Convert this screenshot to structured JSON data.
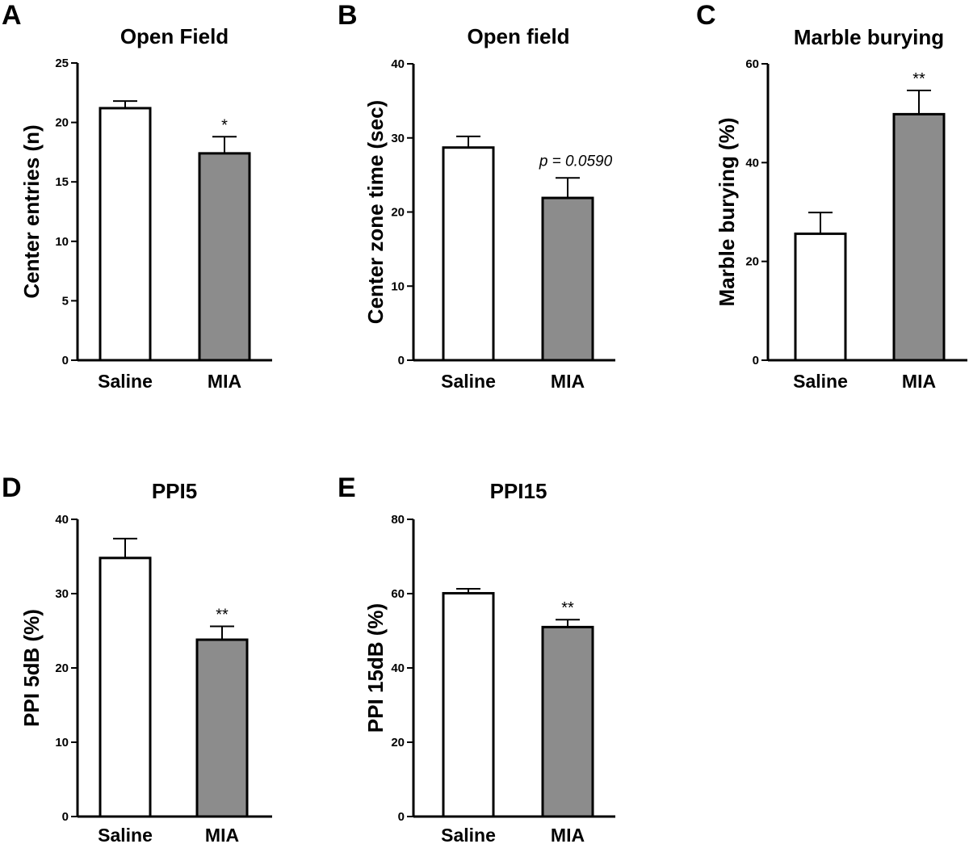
{
  "chart_data": [
    {
      "id": "A",
      "panel_letter": "A",
      "type": "bar",
      "title": "Open Field",
      "xlabel": "",
      "ylabel": "Center entries (n)",
      "ylim": [
        0,
        25
      ],
      "yticks": [
        0,
        5,
        10,
        15,
        20,
        25
      ],
      "ytick_labels": [
        "0",
        "5",
        "10",
        "15",
        "20",
        "25"
      ],
      "categories": [
        "Saline",
        "MIA"
      ],
      "values": [
        21.2,
        17.4
      ],
      "errors": [
        0.6,
        1.4
      ],
      "colors": [
        "#ffffff",
        "#8c8c8c"
      ],
      "annotations": [
        {
          "category": "MIA",
          "text": "*",
          "style": "normal"
        }
      ]
    },
    {
      "id": "B",
      "panel_letter": "B",
      "type": "bar",
      "title": "Open field",
      "xlabel": "",
      "ylabel": "Center zone time (sec)",
      "ylim": [
        0,
        40
      ],
      "yticks": [
        0,
        10,
        20,
        30,
        40
      ],
      "ytick_labels": [
        "0",
        "10",
        "20",
        "30",
        "40"
      ],
      "categories": [
        "Saline",
        "MIA"
      ],
      "values": [
        28.7,
        21.9
      ],
      "errors": [
        1.5,
        2.7
      ],
      "colors": [
        "#ffffff",
        "#8c8c8c"
      ],
      "annotations": [
        {
          "category": "MIA",
          "text": "p = 0.0590",
          "style": "italic"
        }
      ]
    },
    {
      "id": "C",
      "panel_letter": "C",
      "type": "bar",
      "title": "Marble burying",
      "xlabel": "",
      "ylabel": "Marble burying (%)",
      "ylim": [
        0,
        60
      ],
      "yticks": [
        0,
        20,
        40,
        60
      ],
      "ytick_labels": [
        "0",
        "20",
        "40",
        "60"
      ],
      "categories": [
        "Saline",
        "MIA"
      ],
      "values": [
        25.6,
        49.8
      ],
      "errors": [
        4.3,
        4.8
      ],
      "colors": [
        "#ffffff",
        "#8c8c8c"
      ],
      "annotations": [
        {
          "category": "MIA",
          "text": "**",
          "style": "normal"
        }
      ]
    },
    {
      "id": "D",
      "panel_letter": "D",
      "type": "bar",
      "title": "PPI5",
      "xlabel": "",
      "ylabel": "PPI  5dB (%)",
      "ylim": [
        0,
        40
      ],
      "yticks": [
        0,
        10,
        20,
        30,
        40
      ],
      "ytick_labels": [
        "0",
        "10",
        "20",
        "30",
        "40"
      ],
      "categories": [
        "Saline",
        "MIA"
      ],
      "values": [
        34.8,
        23.8
      ],
      "errors": [
        2.6,
        1.8
      ],
      "colors": [
        "#ffffff",
        "#8c8c8c"
      ],
      "annotations": [
        {
          "category": "MIA",
          "text": "**",
          "style": "normal"
        }
      ]
    },
    {
      "id": "E",
      "panel_letter": "E",
      "type": "bar",
      "title": "PPI15",
      "xlabel": "",
      "ylabel": "PPI  15dB (%)",
      "ylim": [
        0,
        80
      ],
      "yticks": [
        0,
        20,
        40,
        60,
        80
      ],
      "ytick_labels": [
        "0",
        "20",
        "40",
        "60",
        "80"
      ],
      "categories": [
        "Saline",
        "MIA"
      ],
      "values": [
        60.1,
        51.0
      ],
      "errors": [
        1.2,
        2.0
      ],
      "colors": [
        "#ffffff",
        "#8c8c8c"
      ],
      "annotations": [
        {
          "category": "MIA",
          "text": "**",
          "style": "normal"
        }
      ]
    }
  ]
}
